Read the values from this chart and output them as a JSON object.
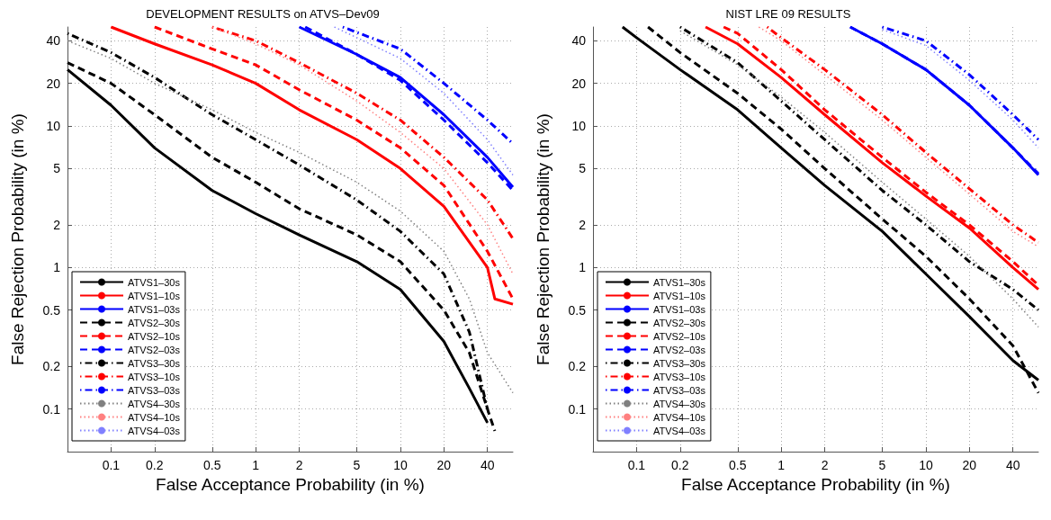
{
  "chart_data": [
    {
      "type": "line",
      "title": "DEVELOPMENT RESULTS on ATVS–Dev09",
      "xlabel": "False Acceptance Probability (in %)",
      "ylabel": "False Rejection Probability (in %)",
      "log": "xy",
      "grid": true,
      "legend": "bottom left",
      "xlim": [
        0.05,
        60
      ],
      "ylim": [
        0.05,
        50
      ],
      "xticks": [
        0.1,
        0.2,
        0.5,
        1,
        2,
        5,
        10,
        20,
        40
      ],
      "yticks": [
        0.1,
        0.2,
        0.5,
        1,
        2,
        5,
        10,
        20,
        40
      ],
      "series": [
        {
          "name": "ATVS1–30s",
          "color": "#000000",
          "line_style": "solid",
          "x": [
            0.05,
            0.1,
            0.2,
            0.5,
            1,
            2,
            5,
            10,
            20,
            30,
            40
          ],
          "values": [
            25,
            14,
            7,
            3.5,
            2.4,
            1.7,
            1.1,
            0.7,
            0.3,
            0.14,
            0.08
          ]
        },
        {
          "name": "ATVS1–10s",
          "color": "#ff0000",
          "line_style": "solid",
          "x": [
            0.1,
            0.2,
            0.5,
            1,
            2,
            5,
            10,
            20,
            40,
            45,
            60
          ],
          "values": [
            50,
            38,
            27,
            20,
            13,
            8,
            5,
            2.7,
            1,
            0.6,
            0.55
          ]
        },
        {
          "name": "ATVS1–03s",
          "color": "#0000ff",
          "line_style": "solid",
          "x": [
            2,
            5,
            10,
            20,
            40,
            60
          ],
          "values": [
            50,
            32,
            22,
            12,
            6,
            3.7
          ]
        },
        {
          "name": "ATVS2–30s",
          "color": "#000000",
          "line_style": "dashed",
          "x": [
            0.05,
            0.1,
            0.2,
            0.5,
            1,
            2,
            5,
            10,
            20,
            30,
            40,
            45
          ],
          "values": [
            28,
            20,
            12,
            6,
            4,
            2.6,
            1.7,
            1.1,
            0.5,
            0.25,
            0.1,
            0.07
          ]
        },
        {
          "name": "ATVS2–10s",
          "color": "#ff0000",
          "line_style": "dashed",
          "x": [
            0.2,
            0.5,
            1,
            2,
            5,
            10,
            20,
            40,
            60
          ],
          "values": [
            50,
            35,
            27,
            18,
            11,
            7,
            3.8,
            1.3,
            0.6
          ]
        },
        {
          "name": "ATVS2–03s",
          "color": "#0000ff",
          "line_style": "dashed",
          "x": [
            2.2,
            5,
            10,
            20,
            40,
            60
          ],
          "values": [
            50,
            32,
            21,
            11,
            5.5,
            3.5
          ]
        },
        {
          "name": "ATVS3–30s",
          "color": "#000000",
          "line_style": "dashdot",
          "x": [
            0.05,
            0.1,
            0.2,
            0.5,
            1,
            2,
            5,
            10,
            20,
            30,
            40
          ],
          "values": [
            45,
            33,
            22,
            12,
            8,
            5.3,
            3,
            1.8,
            0.9,
            0.35,
            0.1
          ]
        },
        {
          "name": "ATVS3–10s",
          "color": "#ff0000",
          "line_style": "dashdot",
          "x": [
            0.5,
            1,
            2,
            5,
            10,
            20,
            40,
            60
          ],
          "values": [
            50,
            40,
            28,
            17,
            11,
            6,
            3,
            1.6
          ]
        },
        {
          "name": "ATVS3–03s",
          "color": "#0000ff",
          "line_style": "dashdot",
          "x": [
            4,
            10,
            20,
            40,
            60
          ],
          "values": [
            50,
            35,
            20,
            11,
            7.5
          ]
        },
        {
          "name": "ATVS4–30s",
          "color": "#808080",
          "line_style": "dotted",
          "x": [
            0.05,
            0.1,
            0.2,
            0.5,
            1,
            2,
            5,
            10,
            20,
            30,
            40,
            60
          ],
          "values": [
            40,
            30,
            20,
            13,
            9,
            6.5,
            4,
            2.5,
            1.3,
            0.6,
            0.25,
            0.13
          ]
        },
        {
          "name": "ATVS4–10s",
          "color": "#ff8080",
          "line_style": "dotted",
          "x": [
            0.5,
            1,
            2,
            5,
            10,
            20,
            40,
            60
          ],
          "values": [
            50,
            38,
            27,
            15,
            9,
            5,
            2,
            0.9
          ]
        },
        {
          "name": "ATVS4–03s",
          "color": "#8080ff",
          "line_style": "dotted",
          "x": [
            3.5,
            10,
            20,
            40,
            60
          ],
          "values": [
            50,
            30,
            17,
            8,
            4.5
          ]
        }
      ]
    },
    {
      "type": "line",
      "title": "NIST LRE 09 RESULTS",
      "xlabel": "False Acceptance Probability (in %)",
      "ylabel": "False Rejection Probability (in %)",
      "log": "xy",
      "grid": true,
      "legend": "bottom left",
      "xlim": [
        0.05,
        60
      ],
      "ylim": [
        0.05,
        50
      ],
      "xticks": [
        0.1,
        0.2,
        0.5,
        1,
        2,
        5,
        10,
        20,
        40
      ],
      "yticks": [
        0.1,
        0.2,
        0.5,
        1,
        2,
        5,
        10,
        20,
        40
      ],
      "series": [
        {
          "name": "ATVS1–30s",
          "color": "#000000",
          "line_style": "solid",
          "x": [
            0.08,
            0.1,
            0.2,
            0.5,
            1,
            2,
            5,
            10,
            20,
            40,
            60
          ],
          "values": [
            50,
            42,
            25,
            13,
            7,
            3.8,
            1.8,
            0.9,
            0.45,
            0.22,
            0.16
          ]
        },
        {
          "name": "ATVS1–10s",
          "color": "#ff0000",
          "line_style": "solid",
          "x": [
            0.3,
            0.5,
            1,
            2,
            5,
            10,
            20,
            40,
            60
          ],
          "values": [
            50,
            38,
            22,
            12,
            5.5,
            3.2,
            1.9,
            1,
            0.7
          ]
        },
        {
          "name": "ATVS1–03s",
          "color": "#0000ff",
          "line_style": "solid",
          "x": [
            3,
            5,
            10,
            20,
            40,
            60
          ],
          "values": [
            50,
            38,
            25,
            14,
            7,
            4.5
          ]
        },
        {
          "name": "ATVS2–30s",
          "color": "#000000",
          "line_style": "dashed",
          "x": [
            0.12,
            0.2,
            0.5,
            1,
            2,
            5,
            10,
            20,
            40,
            60
          ],
          "values": [
            50,
            33,
            17,
            9.5,
            5,
            2.2,
            1.2,
            0.6,
            0.28,
            0.13
          ]
        },
        {
          "name": "ATVS2–10s",
          "color": "#ff0000",
          "line_style": "dashed",
          "x": [
            0.4,
            0.5,
            1,
            2,
            5,
            10,
            20,
            40,
            60
          ],
          "values": [
            50,
            45,
            25,
            13,
            6,
            3.4,
            2,
            1.1,
            0.75
          ]
        },
        {
          "name": "ATVS2–03s",
          "color": "#0000ff",
          "line_style": "dashed",
          "x": [
            3,
            5,
            10,
            20,
            40,
            60
          ],
          "values": [
            50,
            38,
            25,
            14,
            7,
            4.6
          ]
        },
        {
          "name": "ATVS3–30s",
          "color": "#000000",
          "line_style": "dashdot",
          "x": [
            0.2,
            0.5,
            1,
            2,
            5,
            10,
            20,
            40,
            60
          ],
          "values": [
            50,
            28,
            15,
            8,
            3.5,
            2,
            1.1,
            0.7,
            0.5
          ]
        },
        {
          "name": "ATVS3–10s",
          "color": "#ff0000",
          "line_style": "dashdot",
          "x": [
            0.8,
            1,
            2,
            5,
            10,
            20,
            40,
            60
          ],
          "values": [
            50,
            42,
            25,
            12,
            6.5,
            3.6,
            2,
            1.5
          ]
        },
        {
          "name": "ATVS3–03s",
          "color": "#0000ff",
          "line_style": "dashdot",
          "x": [
            5,
            10,
            20,
            40,
            60
          ],
          "values": [
            50,
            40,
            23,
            12,
            8
          ]
        },
        {
          "name": "ATVS4–30s",
          "color": "#808080",
          "line_style": "dotted",
          "x": [
            0.2,
            0.5,
            1,
            2,
            5,
            10,
            20,
            40,
            60
          ],
          "values": [
            47,
            27,
            16,
            9,
            4,
            2.2,
            1.2,
            0.6,
            0.38
          ]
        },
        {
          "name": "ATVS4–10s",
          "color": "#ff8080",
          "line_style": "dotted",
          "x": [
            0.7,
            1,
            2,
            5,
            10,
            20,
            40,
            60
          ],
          "values": [
            50,
            40,
            23,
            11,
            6,
            3.3,
            1.8,
            1.4
          ]
        },
        {
          "name": "ATVS4–03s",
          "color": "#8080ff",
          "line_style": "dotted",
          "x": [
            5,
            10,
            20,
            40,
            60
          ],
          "values": [
            48,
            37,
            21,
            11,
            7
          ]
        }
      ]
    }
  ]
}
